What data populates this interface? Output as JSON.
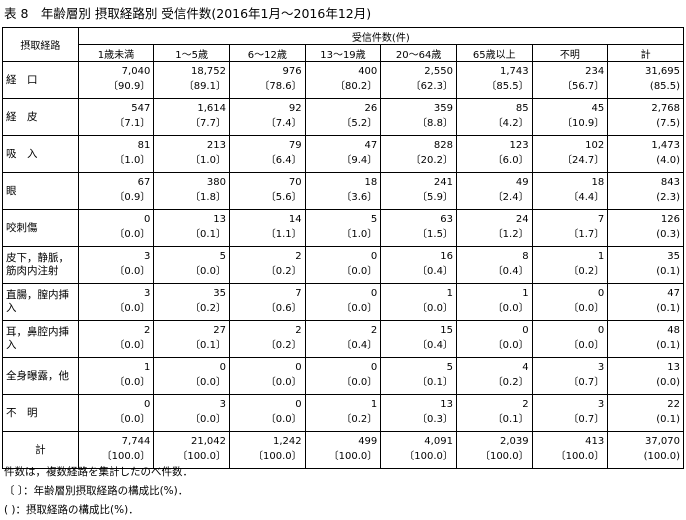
{
  "header": {
    "title": "表 8　年齢層別 摂取経路別 受信件数(2016年1月～2016年12月)"
  },
  "table": {
    "row_header": "摂取経路",
    "group_header": "受信件数(件)",
    "columns": [
      "1歳未満",
      "1～5歳",
      "6～12歳",
      "13～19歳",
      "20～64歳",
      "65歳以上",
      "不明",
      "計"
    ],
    "rows": [
      {
        "label": "経　口",
        "counts": [
          "7,040",
          "18,752",
          "976",
          "400",
          "2,550",
          "1,743",
          "234",
          "31,695"
        ],
        "ratios": [
          "〔90.9〕",
          "〔89.1〕",
          "〔78.6〕",
          "〔80.2〕",
          "〔62.3〕",
          "〔85.5〕",
          "〔56.7〕",
          "(85.5)"
        ]
      },
      {
        "label": "経　皮",
        "counts": [
          "547",
          "1,614",
          "92",
          "26",
          "359",
          "85",
          "45",
          "2,768"
        ],
        "ratios": [
          "〔7.1〕",
          "〔7.7〕",
          "〔7.4〕",
          "〔5.2〕",
          "〔8.8〕",
          "〔4.2〕",
          "〔10.9〕",
          "(7.5)"
        ]
      },
      {
        "label": "吸　入",
        "counts": [
          "81",
          "213",
          "79",
          "47",
          "828",
          "123",
          "102",
          "1,473"
        ],
        "ratios": [
          "〔1.0〕",
          "〔1.0〕",
          "〔6.4〕",
          "〔9.4〕",
          "〔20.2〕",
          "〔6.0〕",
          "〔24.7〕",
          "(4.0)"
        ]
      },
      {
        "label": "眼",
        "counts": [
          "67",
          "380",
          "70",
          "18",
          "241",
          "49",
          "18",
          "843"
        ],
        "ratios": [
          "〔0.9〕",
          "〔1.8〕",
          "〔5.6〕",
          "〔3.6〕",
          "〔5.9〕",
          "〔2.4〕",
          "〔4.4〕",
          "(2.3)"
        ]
      },
      {
        "label": "咬刺傷",
        "counts": [
          "0",
          "13",
          "14",
          "5",
          "63",
          "24",
          "7",
          "126"
        ],
        "ratios": [
          "〔0.0〕",
          "〔0.1〕",
          "〔1.1〕",
          "〔1.0〕",
          "〔1.5〕",
          "〔1.2〕",
          "〔1.7〕",
          "(0.3)"
        ]
      },
      {
        "label": "皮下，静脈，\n筋肉内注射",
        "counts": [
          "3",
          "5",
          "2",
          "0",
          "16",
          "8",
          "1",
          "35"
        ],
        "ratios": [
          "〔0.0〕",
          "〔0.0〕",
          "〔0.2〕",
          "〔0.0〕",
          "〔0.4〕",
          "〔0.4〕",
          "〔0.2〕",
          "(0.1)"
        ]
      },
      {
        "label": "直腸，膣内挿入",
        "counts": [
          "3",
          "35",
          "7",
          "0",
          "1",
          "1",
          "0",
          "47"
        ],
        "ratios": [
          "〔0.0〕",
          "〔0.2〕",
          "〔0.6〕",
          "〔0.0〕",
          "〔0.0〕",
          "〔0.0〕",
          "〔0.0〕",
          "(0.1)"
        ]
      },
      {
        "label": "耳，鼻腔内挿入",
        "counts": [
          "2",
          "27",
          "2",
          "2",
          "15",
          "0",
          "0",
          "48"
        ],
        "ratios": [
          "〔0.0〕",
          "〔0.1〕",
          "〔0.2〕",
          "〔0.4〕",
          "〔0.4〕",
          "〔0.0〕",
          "〔0.0〕",
          "(0.1)"
        ]
      },
      {
        "label": "全身曝露，他",
        "counts": [
          "1",
          "0",
          "0",
          "0",
          "5",
          "4",
          "3",
          "13"
        ],
        "ratios": [
          "〔0.0〕",
          "〔0.0〕",
          "〔0.0〕",
          "〔0.0〕",
          "〔0.1〕",
          "〔0.2〕",
          "〔0.7〕",
          "(0.0)"
        ]
      },
      {
        "label": "不　明",
        "counts": [
          "0",
          "3",
          "0",
          "1",
          "13",
          "2",
          "3",
          "22"
        ],
        "ratios": [
          "〔0.0〕",
          "〔0.0〕",
          "〔0.0〕",
          "〔0.2〕",
          "〔0.3〕",
          "〔0.1〕",
          "〔0.7〕",
          "(0.1)"
        ]
      },
      {
        "label": "計",
        "counts": [
          "7,744",
          "21,042",
          "1,242",
          "499",
          "4,091",
          "2,039",
          "413",
          "37,070"
        ],
        "ratios": [
          "〔100.0〕",
          "〔100.0〕",
          "〔100.0〕",
          "〔100.0〕",
          "〔100.0〕",
          "〔100.0〕",
          "〔100.0〕",
          "(100.0)"
        ]
      }
    ]
  },
  "notes": [
    "件数は，複数経路を集計したのべ件数．",
    "〔 〕：年齢層別摂取経路の構成比(%)．",
    "( )：摂取経路の構成比(%)．"
  ]
}
